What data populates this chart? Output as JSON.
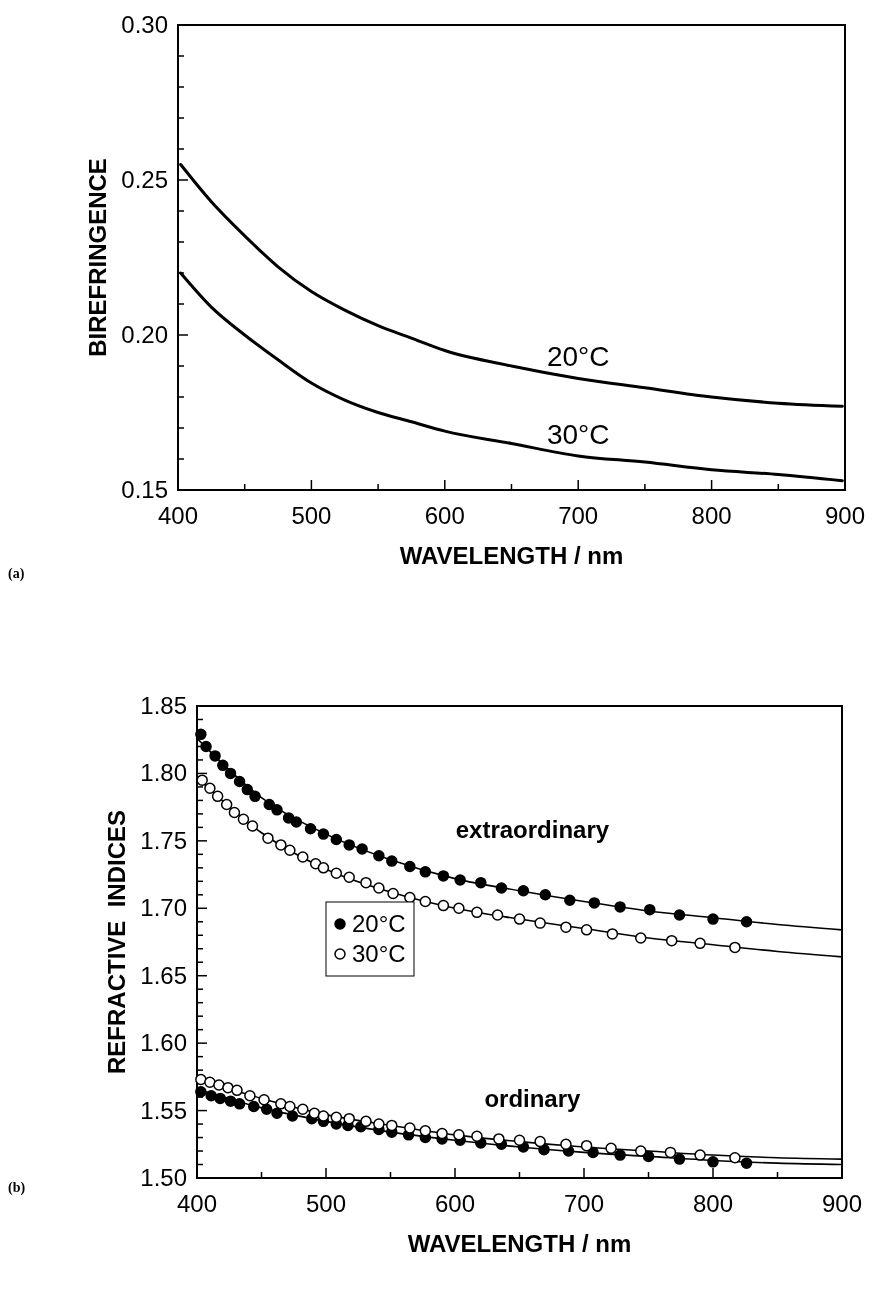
{
  "chart_data": [
    {
      "type": "line",
      "xlabel": "WAVELENGTH / nm",
      "ylabel": "BIREFRINGENCE",
      "xlim": [
        400,
        900
      ],
      "ylim": [
        0.15,
        0.3
      ],
      "xticks": [
        400,
        {
          "value": 450,
          "label": null
        },
        500,
        {
          "value": 550,
          "label": null
        },
        600,
        {
          "value": 650,
          "label": null
        },
        700,
        {
          "value": 750,
          "label": null
        },
        800,
        {
          "value": 850,
          "label": null
        },
        900
      ],
      "yticks": [
        {
          "value": 0.15,
          "label": "0.15"
        },
        {
          "value": 0.16,
          "label": null
        },
        {
          "value": 0.17,
          "label": null
        },
        {
          "value": 0.18,
          "label": null
        },
        {
          "value": 0.19,
          "label": null
        },
        {
          "value": 0.2,
          "label": "0.20"
        },
        {
          "value": 0.21,
          "label": null
        },
        {
          "value": 0.22,
          "label": null
        },
        {
          "value": 0.23,
          "label": null
        },
        {
          "value": 0.24,
          "label": null
        },
        {
          "value": 0.25,
          "label": "0.25"
        },
        {
          "value": 0.26,
          "label": null
        },
        {
          "value": 0.27,
          "label": null
        },
        {
          "value": 0.28,
          "label": null
        },
        {
          "value": 0.29,
          "label": null
        },
        {
          "value": 0.3,
          "label": "0.30"
        }
      ],
      "series": [
        {
          "name": "20°C",
          "color": "#000000",
          "x": [
            402,
            425,
            450,
            475,
            500,
            525,
            550,
            575,
            600,
            650,
            700,
            750,
            800,
            850,
            898
          ],
          "values": [
            0.255,
            0.243,
            0.232,
            0.222,
            0.214,
            0.208,
            0.203,
            0.199,
            0.195,
            0.19,
            0.186,
            0.183,
            0.18,
            0.178,
            0.177
          ]
        },
        {
          "name": "30°C",
          "color": "#000000",
          "x": [
            402,
            425,
            450,
            475,
            500,
            525,
            550,
            575,
            600,
            650,
            700,
            750,
            800,
            850,
            898
          ],
          "values": [
            0.22,
            0.209,
            0.2,
            0.192,
            0.1845,
            0.179,
            0.175,
            0.172,
            0.169,
            0.165,
            0.161,
            0.159,
            0.1565,
            0.155,
            0.153
          ]
        }
      ],
      "annotations": [
        "(a)"
      ]
    },
    {
      "type": "scatter",
      "xlabel": "WAVELENGTH / nm",
      "ylabel": "REFRACTIVE  INDICES",
      "xlim": [
        400,
        900
      ],
      "ylim": [
        1.5,
        1.85
      ],
      "marker": "circle",
      "legend": "left",
      "xticks": [
        400,
        {
          "value": 450,
          "label": null
        },
        500,
        {
          "value": 550,
          "label": null
        },
        600,
        {
          "value": 650,
          "label": null
        },
        700,
        {
          "value": 750,
          "label": null
        },
        800,
        {
          "value": 850,
          "label": null
        },
        900
      ],
      "yticks": [
        {
          "value": 1.5,
          "label": "1.50"
        },
        {
          "value": 1.51,
          "label": null
        },
        {
          "value": 1.52,
          "label": null
        },
        {
          "value": 1.53,
          "label": null
        },
        {
          "value": 1.54,
          "label": null
        },
        1.55,
        {
          "value": 1.56,
          "label": null
        },
        {
          "value": 1.57,
          "label": null
        },
        {
          "value": 1.58,
          "label": null
        },
        {
          "value": 1.59,
          "label": null
        },
        {
          "value": 1.6,
          "label": "1.60"
        },
        {
          "value": 1.61,
          "label": null
        },
        {
          "value": 1.62,
          "label": null
        },
        {
          "value": 1.63,
          "label": null
        },
        {
          "value": 1.64,
          "label": null
        },
        1.65,
        {
          "value": 1.66,
          "label": null
        },
        {
          "value": 1.67,
          "label": null
        },
        {
          "value": 1.68,
          "label": null
        },
        {
          "value": 1.69,
          "label": null
        },
        {
          "value": 1.7,
          "label": "1.70"
        },
        {
          "value": 1.71,
          "label": null
        },
        {
          "value": 1.72,
          "label": null
        },
        {
          "value": 1.73,
          "label": null
        },
        {
          "value": 1.74,
          "label": null
        },
        1.75,
        {
          "value": 1.76,
          "label": null
        },
        {
          "value": 1.77,
          "label": null
        },
        {
          "value": 1.78,
          "label": null
        },
        {
          "value": 1.79,
          "label": null
        },
        {
          "value": 1.8,
          "label": "1.80"
        },
        {
          "value": 1.81,
          "label": null
        },
        {
          "value": 1.82,
          "label": null
        },
        {
          "value": 1.83,
          "label": null
        },
        {
          "value": 1.84,
          "label": null
        },
        1.85
      ],
      "series": [
        {
          "name": "20°C",
          "color": "#000000",
          "x": [
            403,
            407,
            414,
            420,
            426,
            433,
            439,
            445,
            456,
            462,
            471,
            477,
            488,
            498,
            508,
            518,
            528,
            541,
            551,
            565,
            577,
            591,
            604,
            620,
            636,
            653,
            670,
            689,
            708,
            728,
            751,
            774,
            800,
            826
          ],
          "values": [
            1.829,
            1.82,
            1.813,
            1.806,
            1.8,
            1.794,
            1.788,
            1.783,
            1.777,
            1.773,
            1.767,
            1.764,
            1.759,
            1.755,
            1.751,
            1.747,
            1.744,
            1.739,
            1.735,
            1.731,
            1.727,
            1.724,
            1.721,
            1.719,
            1.715,
            1.713,
            1.71,
            1.706,
            1.704,
            1.701,
            1.699,
            1.695,
            1.692,
            1.69
          ]
        },
        {
          "name": "30°C",
          "color": "#ffffff",
          "x": [
            404,
            410,
            416,
            423,
            429,
            436,
            443,
            455,
            465,
            472,
            482,
            492,
            498,
            508,
            518,
            531,
            541,
            552,
            565,
            577,
            591,
            603,
            617,
            633,
            650,
            666,
            686,
            702,
            722,
            744,
            768,
            790,
            817
          ],
          "values": [
            1.795,
            1.789,
            1.783,
            1.777,
            1.771,
            1.766,
            1.761,
            1.752,
            1.747,
            1.743,
            1.738,
            1.733,
            1.73,
            1.726,
            1.723,
            1.719,
            1.715,
            1.711,
            1.708,
            1.705,
            1.702,
            1.7,
            1.697,
            1.695,
            1.692,
            1.689,
            1.686,
            1.684,
            1.681,
            1.678,
            1.676,
            1.674,
            1.671
          ]
        },
        {
          "color": "#000000",
          "x": [
            403,
            411,
            418,
            426,
            433,
            444,
            454,
            462,
            474,
            489,
            498,
            508,
            517,
            527,
            541,
            551,
            564,
            577,
            590,
            604,
            620,
            636,
            653,
            669,
            688,
            707,
            728,
            750,
            774,
            800,
            826
          ],
          "values": [
            1.564,
            1.561,
            1.559,
            1.557,
            1.555,
            1.553,
            1.551,
            1.548,
            1.546,
            1.544,
            1.542,
            1.54,
            1.539,
            1.538,
            1.536,
            1.534,
            1.532,
            1.53,
            1.529,
            1.528,
            1.526,
            1.525,
            1.523,
            1.521,
            1.52,
            1.519,
            1.517,
            1.516,
            1.514,
            1.512,
            1.511
          ]
        },
        {
          "color": "#ffffff",
          "x": [
            403,
            410,
            417,
            424,
            431,
            441,
            452,
            465,
            472,
            482,
            491,
            498,
            508,
            518,
            531,
            541,
            551,
            565,
            577,
            590,
            603,
            617,
            634,
            650,
            666,
            686,
            702,
            721,
            744,
            767,
            790,
            817
          ],
          "values": [
            1.573,
            1.571,
            1.569,
            1.567,
            1.565,
            1.561,
            1.558,
            1.555,
            1.553,
            1.551,
            1.548,
            1.546,
            1.545,
            1.544,
            1.542,
            1.54,
            1.539,
            1.537,
            1.535,
            1.533,
            1.532,
            1.531,
            1.529,
            1.528,
            1.527,
            1.525,
            1.524,
            1.522,
            1.52,
            1.519,
            1.517,
            1.515
          ]
        },
        {
          "type": "line",
          "marker": "none",
          "color": "#000000",
          "x": [
            400,
            450,
            500,
            550,
            600,
            650,
            700,
            750,
            800,
            850,
            900
          ],
          "values": [
            1.826,
            1.782,
            1.755,
            1.736,
            1.722,
            1.713,
            1.705,
            1.698,
            1.693,
            1.688,
            1.684
          ]
        },
        {
          "type": "line",
          "marker": "none",
          "color": "#000000",
          "x": [
            400,
            450,
            500,
            550,
            600,
            650,
            700,
            750,
            800,
            850,
            900
          ],
          "values": [
            1.797,
            1.756,
            1.729,
            1.712,
            1.7,
            1.692,
            1.685,
            1.678,
            1.673,
            1.668,
            1.664
          ]
        },
        {
          "type": "line",
          "marker": "none",
          "color": "#000000",
          "x": [
            400,
            450,
            500,
            550,
            600,
            650,
            700,
            750,
            800,
            850,
            900
          ],
          "values": [
            1.566,
            1.552,
            1.542,
            1.534,
            1.528,
            1.523,
            1.519,
            1.516,
            1.513,
            1.511,
            1.51
          ]
        },
        {
          "type": "line",
          "marker": "none",
          "color": "#000000",
          "x": [
            400,
            450,
            500,
            550,
            600,
            650,
            700,
            750,
            800,
            850,
            900
          ],
          "values": [
            1.574,
            1.559,
            1.547,
            1.539,
            1.532,
            1.527,
            1.523,
            1.52,
            1.517,
            1.515,
            1.514
          ]
        }
      ],
      "annotations": [
        "extraordinary",
        "ordinary",
        "(b)"
      ]
    }
  ]
}
